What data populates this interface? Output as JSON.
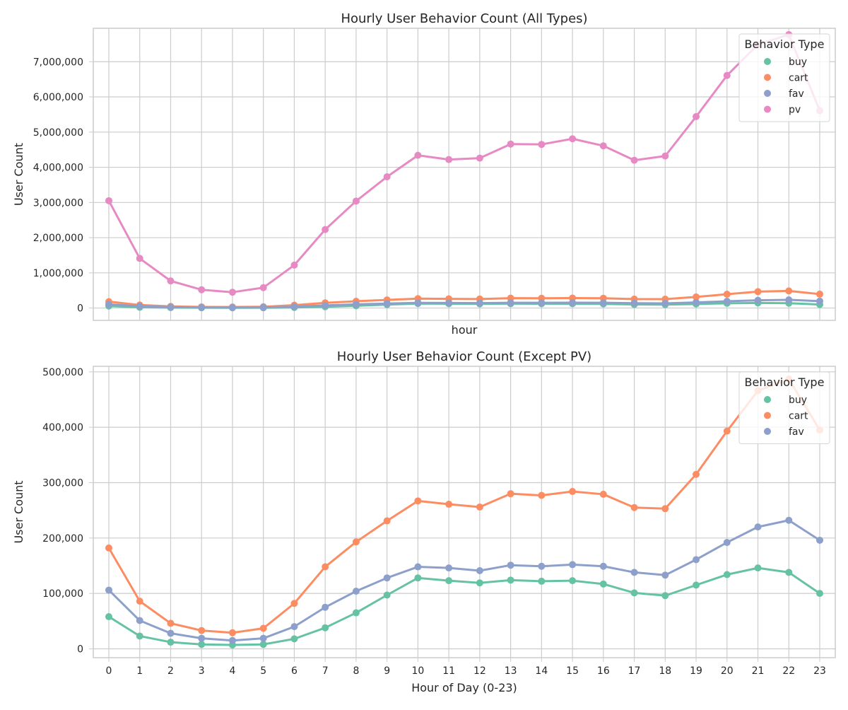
{
  "colors": {
    "buy": "#66c2a5",
    "cart": "#fc8d62",
    "fav": "#8da0cb",
    "pv": "#e78ac3",
    "grid": "#cccccc",
    "axis": "#cccccc"
  },
  "chart_data": [
    {
      "type": "line",
      "title": "Hourly User Behavior Count (All Types)",
      "xlabel": "hour",
      "ylabel": "User Count",
      "x": [
        0,
        1,
        2,
        3,
        4,
        5,
        6,
        7,
        8,
        9,
        10,
        11,
        12,
        13,
        14,
        15,
        16,
        17,
        18,
        19,
        20,
        21,
        22,
        23
      ],
      "ylim": [
        -350000,
        7950000
      ],
      "yticks": [
        0,
        1000000,
        2000000,
        3000000,
        4000000,
        5000000,
        6000000,
        7000000
      ],
      "ytick_labels": [
        "0",
        "1,000,000",
        "2,000,000",
        "3,000,000",
        "4,000,000",
        "5,000,000",
        "6,000,000",
        "7,000,000"
      ],
      "show_x_ticks": false,
      "grid": true,
      "legend": {
        "title": "Behavior Type",
        "placement": "top-right"
      },
      "series": [
        {
          "name": "buy",
          "color": "#66c2a5",
          "values": [
            58000,
            23000,
            12000,
            8000,
            7000,
            8000,
            18000,
            38000,
            65000,
            97000,
            128000,
            123000,
            119000,
            124000,
            122000,
            123000,
            117000,
            101000,
            96000,
            115000,
            134000,
            146000,
            138000,
            100000
          ]
        },
        {
          "name": "cart",
          "color": "#fc8d62",
          "values": [
            182000,
            86000,
            46000,
            33000,
            29000,
            37000,
            82000,
            148000,
            193000,
            231000,
            267000,
            261000,
            256000,
            280000,
            277000,
            284000,
            279000,
            255000,
            253000,
            315000,
            393000,
            466000,
            487000,
            395000
          ]
        },
        {
          "name": "fav",
          "color": "#8da0cb",
          "values": [
            106000,
            51000,
            28000,
            19000,
            15000,
            19000,
            40000,
            75000,
            104000,
            128000,
            148000,
            146000,
            141000,
            151000,
            149000,
            152000,
            149000,
            138000,
            133000,
            161000,
            192000,
            220000,
            232000,
            196000
          ]
        },
        {
          "name": "pv",
          "color": "#e78ac3",
          "values": [
            3050000,
            1410000,
            770000,
            520000,
            450000,
            580000,
            1220000,
            2230000,
            3040000,
            3730000,
            4340000,
            4220000,
            4260000,
            4660000,
            4650000,
            4810000,
            4610000,
            4200000,
            4320000,
            5440000,
            6610000,
            7490000,
            7770000,
            5610000
          ]
        }
      ]
    },
    {
      "type": "line",
      "title": "Hourly User Behavior Count (Except PV)",
      "xlabel": "Hour of Day (0-23)",
      "ylabel": "User Count",
      "x": [
        0,
        1,
        2,
        3,
        4,
        5,
        6,
        7,
        8,
        9,
        10,
        11,
        12,
        13,
        14,
        15,
        16,
        17,
        18,
        19,
        20,
        21,
        22,
        23
      ],
      "ylim": [
        -16000,
        510000
      ],
      "yticks": [
        0,
        100000,
        200000,
        300000,
        400000,
        500000
      ],
      "ytick_labels": [
        "0",
        "100,000",
        "200,000",
        "300,000",
        "400,000",
        "500,000"
      ],
      "show_x_ticks": true,
      "grid": true,
      "legend": {
        "title": "Behavior Type",
        "placement": "top-right"
      },
      "series": [
        {
          "name": "buy",
          "color": "#66c2a5",
          "values": [
            58000,
            23000,
            12000,
            8000,
            7000,
            8000,
            18000,
            38000,
            65000,
            97000,
            128000,
            123000,
            119000,
            124000,
            122000,
            123000,
            117000,
            101000,
            96000,
            115000,
            134000,
            146000,
            138000,
            100000
          ]
        },
        {
          "name": "cart",
          "color": "#fc8d62",
          "values": [
            182000,
            86000,
            46000,
            33000,
            29000,
            37000,
            82000,
            148000,
            193000,
            231000,
            267000,
            261000,
            256000,
            280000,
            277000,
            284000,
            279000,
            255000,
            253000,
            315000,
            393000,
            466000,
            487000,
            395000
          ]
        },
        {
          "name": "fav",
          "color": "#8da0cb",
          "values": [
            106000,
            51000,
            28000,
            19000,
            15000,
            19000,
            40000,
            75000,
            104000,
            128000,
            148000,
            146000,
            141000,
            151000,
            149000,
            152000,
            149000,
            138000,
            133000,
            161000,
            192000,
            220000,
            232000,
            196000
          ]
        }
      ]
    }
  ]
}
